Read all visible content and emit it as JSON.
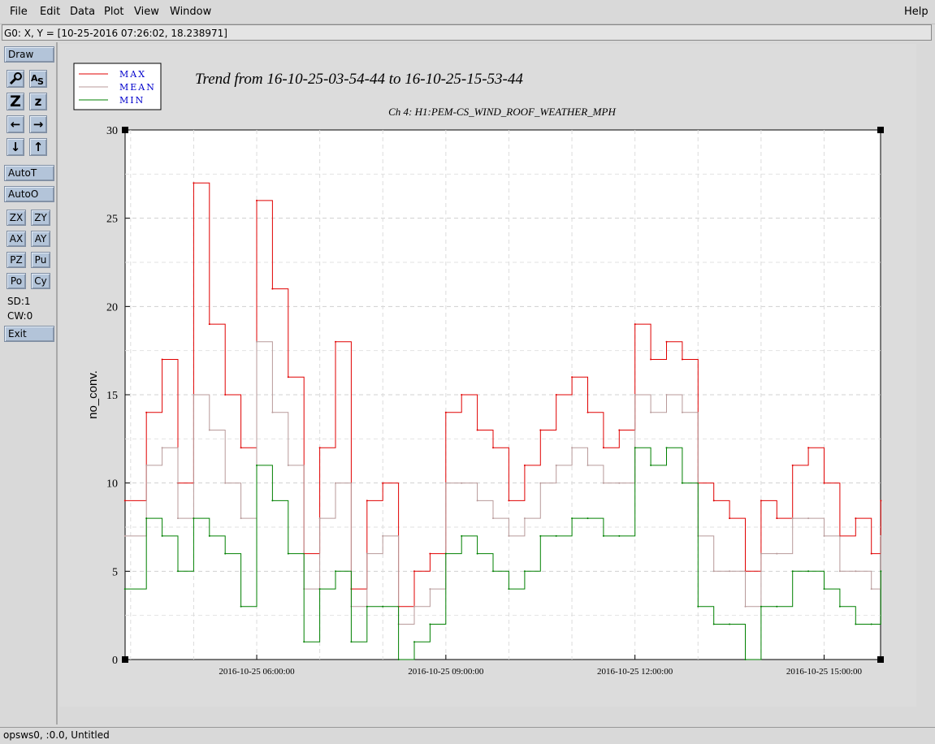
{
  "menu": {
    "file": "File",
    "edit": "Edit",
    "data": "Data",
    "plot": "Plot",
    "view": "View",
    "window": "Window",
    "help": "Help"
  },
  "status_line": "G0: X, Y = [10-25-2016 07:26:02, 18.238971]",
  "toolbar": {
    "draw": "Draw",
    "zoom_big": "Z",
    "zoom_small": "z",
    "left_arrow": "←",
    "right_arrow": "→",
    "down_arrow": "↓",
    "up_arrow": "↑",
    "autot": "AutoT",
    "autoo": "AutoO",
    "zx": "ZX",
    "zy": "ZY",
    "ax": "AX",
    "ay": "AY",
    "pz": "PZ",
    "pu": "Pu",
    "po": "Po",
    "cy": "Cy",
    "sd": "SD:1",
    "cw": "CW:0",
    "exit": "Exit"
  },
  "bottom_status": "opsws0, :0.0, Untitled",
  "colors": {
    "max": "#e00000",
    "mean": "#b89a9a",
    "min": "#008000",
    "legend_text": "#0000cc",
    "button_bg": "#b3c4d9"
  },
  "chart_data": {
    "type": "line",
    "title": "Trend from 16-10-25-03-54-44 to 16-10-25-15-53-44",
    "subtitle": "Ch 4: H1:PEM-CS_WIND_ROOF_WEATHER_MPH",
    "xlabel": "",
    "ylabel": "no_conv.",
    "ylim": [
      0,
      30
    ],
    "yticks": [
      0,
      5,
      10,
      15,
      20,
      25,
      30
    ],
    "xlim_hours": [
      3.912,
      15.896
    ],
    "xticks": [
      {
        "hour": 6,
        "label": "2016-10-25 06:00:00"
      },
      {
        "hour": 9,
        "label": "2016-10-25 09:00:00"
      },
      {
        "hour": 12,
        "label": "2016-10-25 12:00:00"
      },
      {
        "hour": 15,
        "label": "2016-10-25 15:00:00"
      }
    ],
    "grid": true,
    "legend_position": "top-left",
    "series": [
      {
        "name": "MAX",
        "x": [
          3.91,
          4.25,
          4.5,
          4.75,
          5.0,
          5.25,
          5.5,
          5.75,
          6.0,
          6.25,
          6.5,
          6.75,
          7.0,
          7.25,
          7.5,
          7.75,
          8.0,
          8.25,
          8.5,
          8.75,
          9.0,
          9.25,
          9.5,
          9.75,
          10.0,
          10.25,
          10.5,
          10.75,
          11.0,
          11.25,
          11.5,
          11.75,
          12.0,
          12.25,
          12.5,
          12.75,
          13.0,
          13.25,
          13.5,
          13.75,
          14.0,
          14.25,
          14.5,
          14.75,
          15.0,
          15.25,
          15.5,
          15.75,
          15.9
        ],
        "values": [
          9,
          14,
          17,
          10,
          27,
          19,
          15,
          12,
          26,
          21,
          16,
          6,
          12,
          18,
          4,
          9,
          10,
          3,
          5,
          6,
          14,
          15,
          13,
          12,
          9,
          11,
          13,
          15,
          16,
          14,
          12,
          13,
          19,
          17,
          18,
          17,
          10,
          9,
          8,
          5,
          9,
          8,
          11,
          12,
          10,
          7,
          8,
          6,
          9
        ]
      },
      {
        "name": "MEAN",
        "x": [
          3.91,
          4.25,
          4.5,
          4.75,
          5.0,
          5.25,
          5.5,
          5.75,
          6.0,
          6.25,
          6.5,
          6.75,
          7.0,
          7.25,
          7.5,
          7.75,
          8.0,
          8.25,
          8.5,
          8.75,
          9.0,
          9.25,
          9.5,
          9.75,
          10.0,
          10.25,
          10.5,
          10.75,
          11.0,
          11.25,
          11.5,
          11.75,
          12.0,
          12.25,
          12.5,
          12.75,
          13.0,
          13.25,
          13.5,
          13.75,
          14.0,
          14.25,
          14.5,
          14.75,
          15.0,
          15.25,
          15.5,
          15.75,
          15.9
        ],
        "values": [
          7,
          11,
          12,
          8,
          15,
          13,
          10,
          8,
          18,
          14,
          11,
          4,
          8,
          10,
          3,
          6,
          7,
          2,
          3,
          4,
          10,
          10,
          9,
          8,
          7,
          8,
          10,
          11,
          12,
          11,
          10,
          10,
          15,
          14,
          15,
          14,
          7,
          5,
          5,
          3,
          6,
          6,
          8,
          8,
          7,
          5,
          5,
          4,
          7
        ]
      },
      {
        "name": "MIN",
        "x": [
          3.91,
          4.25,
          4.5,
          4.75,
          5.0,
          5.25,
          5.5,
          5.75,
          6.0,
          6.25,
          6.5,
          6.75,
          7.0,
          7.25,
          7.5,
          7.75,
          8.0,
          8.25,
          8.5,
          8.75,
          9.0,
          9.25,
          9.5,
          9.75,
          10.0,
          10.25,
          10.5,
          10.75,
          11.0,
          11.25,
          11.5,
          11.75,
          12.0,
          12.25,
          12.5,
          12.75,
          13.0,
          13.25,
          13.5,
          13.75,
          14.0,
          14.25,
          14.5,
          14.75,
          15.0,
          15.25,
          15.5,
          15.75,
          15.9
        ],
        "values": [
          4,
          8,
          7,
          5,
          8,
          7,
          6,
          3,
          11,
          9,
          6,
          1,
          4,
          5,
          1,
          3,
          3,
          0,
          1,
          2,
          6,
          7,
          6,
          5,
          4,
          5,
          7,
          7,
          8,
          8,
          7,
          7,
          12,
          11,
          12,
          10,
          3,
          2,
          2,
          0,
          3,
          3,
          5,
          5,
          4,
          3,
          2,
          2,
          5
        ]
      }
    ]
  }
}
